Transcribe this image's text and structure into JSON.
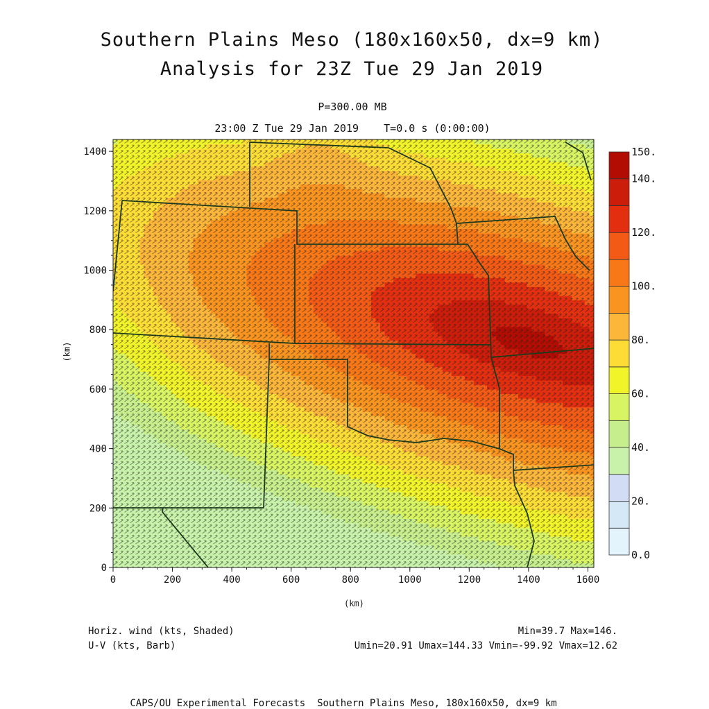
{
  "header": {
    "title_line1": "Southern Plains Meso (180x160x50, dx=9 km)",
    "title_line2": "Analysis for 23Z Tue 29 Jan 2019",
    "level": "P=300.00 MB",
    "valid_time": "23:00 Z Tue 29 Jan 2019    T=0.0 s (0:00:00)"
  },
  "chart_data": {
    "type": "heatmap",
    "xlabel": "(km)",
    "ylabel": "(km)",
    "xlim": [
      0,
      1620
    ],
    "ylim": [
      0,
      1440
    ],
    "x_ticks": [
      "0",
      "200",
      "400",
      "600",
      "800",
      "1000",
      "1200",
      "1400",
      "1600"
    ],
    "y_ticks": [
      "0",
      "200",
      "400",
      "600",
      "800",
      "1000",
      "1200",
      "1400"
    ],
    "field": "Horiz. wind speed (kts)",
    "min": 39.7,
    "max": 146,
    "jet_core_km": [
      1400,
      760
    ],
    "colorbar": {
      "labels": [
        "150.",
        "140.",
        "120.",
        "100.",
        "80.",
        "60.",
        "40.",
        "20.",
        "0.0"
      ],
      "label_values": [
        150,
        140,
        120,
        100,
        80,
        60,
        40,
        20,
        0
      ],
      "levels": [
        0,
        10,
        20,
        30,
        40,
        50,
        60,
        70,
        80,
        90,
        100,
        110,
        120,
        130,
        140,
        150
      ],
      "colors": [
        "#e4f4fc",
        "#d4e8f6",
        "#d2dcf4",
        "#c8f2aa",
        "#c6ee8c",
        "#d8f462",
        "#f2f42a",
        "#fedc36",
        "#fcb63a",
        "#fa9420",
        "#f87818",
        "#f25a16",
        "#e42e10",
        "#cc1c0a",
        "#b30c02"
      ]
    }
  },
  "legend": {
    "shaded_label": "Horiz. wind (kts, Shaded)",
    "barb_label": "U-V (kts, Barb)",
    "minmax": "Min=39.7 Max=146.",
    "uv_stats": "Umin=20.91 Umax=144.33 Vmin=-99.92 Vmax=12.62"
  },
  "footer": {
    "caption": "CAPS/OU Experimental Forecasts  Southern Plains Meso, 180x160x50, dx=9 km"
  },
  "colors": {
    "state_borders": "#1d3a1d",
    "barbs": "#222222"
  }
}
